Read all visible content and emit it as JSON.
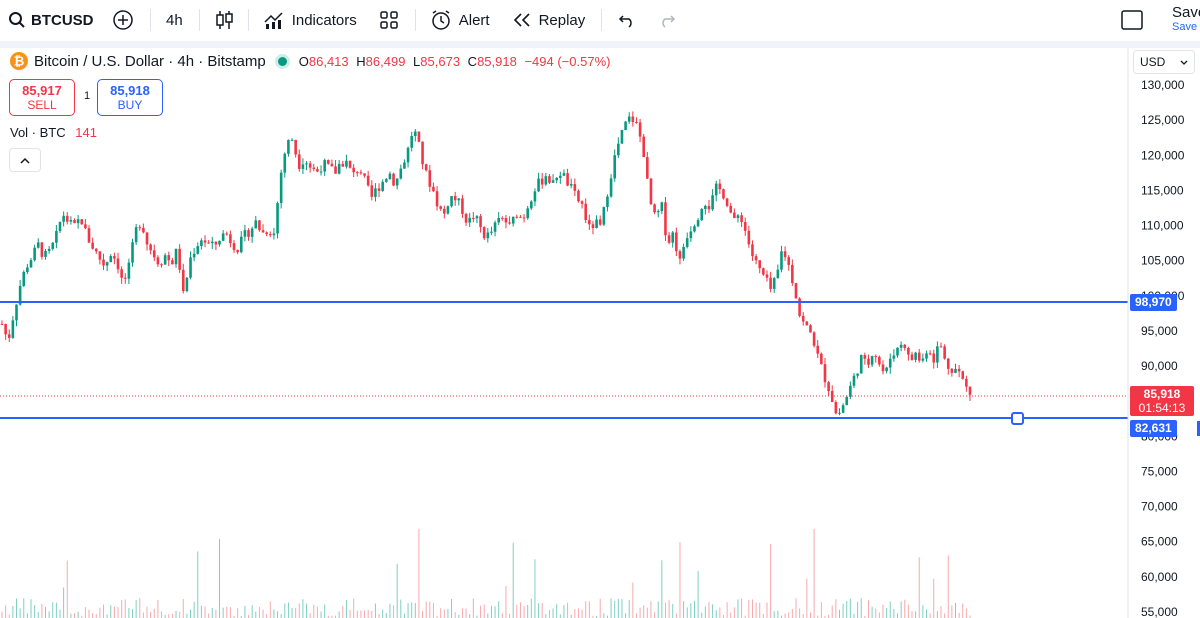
{
  "toolbar": {
    "symbol": "BTCUSD",
    "interval": "4h",
    "indicators": "Indicators",
    "alert": "Alert",
    "replay": "Replay",
    "save": "Save",
    "save_sub": "Save"
  },
  "legend": {
    "title": "Bitcoin / U.S. Dollar · 4h · Bitstamp",
    "o_label": "O",
    "o": "86,413",
    "h_label": "H",
    "h": "86,499",
    "l_label": "L",
    "l": "85,673",
    "c_label": "C",
    "c": "85,918",
    "change": "−494 (−0.57%)"
  },
  "trade": {
    "sell_price": "85,917",
    "sell_label": "SELL",
    "qty": "1",
    "buy_price": "85,918",
    "buy_label": "BUY"
  },
  "volume": {
    "label": "Vol · BTC",
    "value": "141"
  },
  "currency": "USD",
  "price_axis": {
    "labels": [
      "130,000",
      "125,000",
      "120,000",
      "115,000",
      "110,000",
      "105,000",
      "100,000",
      "95,000",
      "90,000",
      "85,000",
      "80,000",
      "75,000",
      "70,000",
      "65,000",
      "60,000",
      "55,000"
    ],
    "tags": {
      "line_upper": "98,970",
      "last_price": "85,918",
      "countdown": "01:54:13",
      "line_lower": "82,631"
    }
  },
  "colors": {
    "up": "#089981",
    "down": "#f23645",
    "horizontal_line": "#2962ff",
    "vol_up": "#7fcfc2",
    "vol_down": "#f7a9ad"
  },
  "chart_data": {
    "type": "candlestick",
    "symbol": "BTCUSD",
    "interval": "4h",
    "ylim": [
      54000,
      132000
    ],
    "horizontal_lines": [
      98970,
      82631
    ],
    "last_price": 85918,
    "path_prices": [
      96000,
      93500,
      97800,
      101500,
      104200,
      105600,
      107200,
      105500,
      106300,
      108500,
      111800,
      110500,
      109700,
      111200,
      108500,
      107000,
      105500,
      104300,
      106200,
      105000,
      101500,
      104000,
      109000,
      110800,
      107500,
      106000,
      104700,
      105800,
      104600,
      106600,
      99800,
      105000,
      107000,
      108200,
      107400,
      106900,
      108300,
      109000,
      107600,
      106800,
      108400,
      109400,
      110500,
      108900,
      109500,
      108800,
      117000,
      121500,
      122400,
      118700,
      119600,
      118300,
      117600,
      118800,
      118200,
      117500,
      119100,
      118900,
      117000,
      118400,
      116200,
      113800,
      115300,
      116400,
      117600,
      115900,
      118300,
      120400,
      124000,
      120900,
      117400,
      115600,
      113100,
      111300,
      114200,
      113700,
      112500,
      110300,
      111500,
      109800,
      108300,
      109200,
      110600,
      111000,
      109600,
      112000,
      110800,
      113100,
      115300,
      116200,
      117400,
      115600,
      117900,
      116800,
      115300,
      113800,
      112800,
      109400,
      110400,
      109600,
      114600,
      118800,
      121900,
      124300,
      125500,
      124100,
      120900,
      113600,
      110800,
      112900,
      107600,
      109000,
      104600,
      108400,
      109900,
      111400,
      113800,
      112600,
      115200,
      115000,
      113100,
      110300,
      111900,
      108800,
      105800,
      103900,
      102600,
      100800,
      102300,
      106900,
      104400,
      101200,
      96600,
      95500,
      94200,
      90800,
      88400,
      86100,
      82700,
      84400,
      86500,
      88700,
      91100,
      89900,
      92600,
      90400,
      88600,
      91800,
      92400,
      93800,
      90600,
      91800,
      90400,
      92900,
      91100,
      93400,
      90200,
      89800,
      89400,
      87600,
      85900
    ]
  }
}
